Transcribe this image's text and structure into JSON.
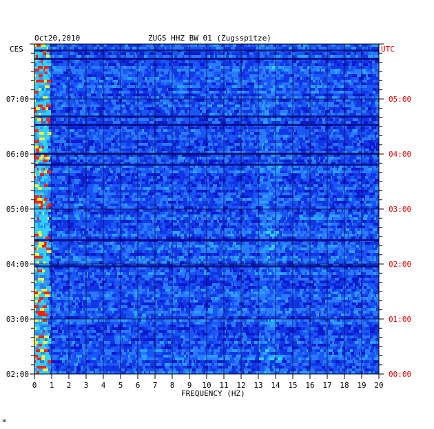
{
  "chart_data": {
    "type": "heatmap",
    "title_date": "Oct20,2010",
    "title_station": "ZUGS HHZ BW 01 (Zugsspitze)",
    "left_zone": "CES",
    "right_zone": "UTC",
    "xlabel": "FREQUENCY (HZ)",
    "xlim": [
      0,
      20
    ],
    "x_ticks": [
      "0",
      "1",
      "2",
      "3",
      "4",
      "5",
      "6",
      "7",
      "8",
      "9",
      "10",
      "11",
      "12",
      "13",
      "14",
      "15",
      "16",
      "17",
      "18",
      "19",
      "20"
    ],
    "left_time_ticks": [
      {
        "label": "07:00",
        "hour_utc": 5
      },
      {
        "label": "06:00",
        "hour_utc": 4
      },
      {
        "label": "05:00",
        "hour_utc": 3
      },
      {
        "label": "04:00",
        "hour_utc": 2
      },
      {
        "label": "03:00",
        "hour_utc": 1
      },
      {
        "label": "02:00",
        "hour_utc": 0
      }
    ],
    "right_time_ticks": [
      {
        "label": "05:00",
        "hour_utc": 5
      },
      {
        "label": "04:00",
        "hour_utc": 4
      },
      {
        "label": "03:00",
        "hour_utc": 3
      },
      {
        "label": "02:00",
        "hour_utc": 2
      },
      {
        "label": "01:00",
        "hour_utc": 1
      },
      {
        "label": "00:00",
        "hour_utc": 0
      }
    ],
    "ylim_utc_hours": [
      0,
      6
    ],
    "grid": true,
    "colors": {
      "background_low": "#0a10b0",
      "mid": "#1e74ff",
      "high": "#33e0ff",
      "peak_yellow": "#f2f23a",
      "peak_red": "#ff2010",
      "grid": "#0a0a2a",
      "utc_text": "#e00000"
    }
  },
  "footer_mark": "ж"
}
